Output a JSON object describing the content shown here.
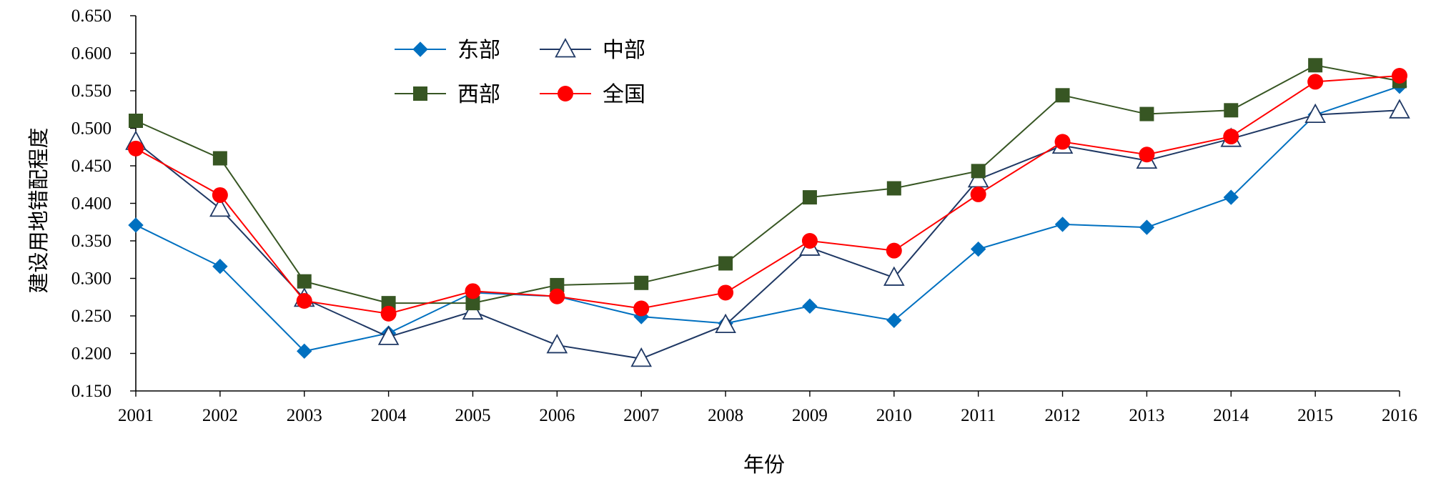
{
  "chart_data": {
    "type": "line",
    "title": "",
    "xlabel": "年份",
    "ylabel": "建设用地错配程度",
    "x": [
      "2001",
      "2002",
      "2003",
      "2004",
      "2005",
      "2006",
      "2007",
      "2008",
      "2009",
      "2010",
      "2011",
      "2012",
      "2013",
      "2014",
      "2015",
      "2016"
    ],
    "ylim": [
      0.15,
      0.65
    ],
    "yticks": [
      "0.150",
      "0.200",
      "0.250",
      "0.300",
      "0.350",
      "0.400",
      "0.450",
      "0.500",
      "0.550",
      "0.600",
      "0.650"
    ],
    "grid": false,
    "legend_position": "top-left",
    "series": [
      {
        "name": "东部",
        "color": "#0070C0",
        "marker": "diamond-filled",
        "values": [
          0.371,
          0.316,
          0.203,
          0.227,
          0.281,
          0.276,
          0.249,
          0.24,
          0.263,
          0.244,
          0.339,
          0.372,
          0.368,
          0.408,
          0.518,
          0.556
        ]
      },
      {
        "name": "中部",
        "color": "#1F3864",
        "marker": "triangle-open",
        "values": [
          0.482,
          0.393,
          0.273,
          0.222,
          0.256,
          0.211,
          0.193,
          0.238,
          0.341,
          0.301,
          0.432,
          0.477,
          0.457,
          0.486,
          0.518,
          0.524
        ]
      },
      {
        "name": "西部",
        "color": "#375623",
        "marker": "square-filled",
        "values": [
          0.51,
          0.46,
          0.296,
          0.267,
          0.267,
          0.291,
          0.294,
          0.32,
          0.408,
          0.42,
          0.443,
          0.544,
          0.519,
          0.524,
          0.584,
          0.563
        ]
      },
      {
        "name": "全国",
        "color": "#FF0000",
        "marker": "circle-filled",
        "values": [
          0.473,
          0.411,
          0.27,
          0.253,
          0.283,
          0.276,
          0.26,
          0.281,
          0.35,
          0.337,
          0.412,
          0.482,
          0.465,
          0.489,
          0.562,
          0.57
        ]
      }
    ]
  }
}
